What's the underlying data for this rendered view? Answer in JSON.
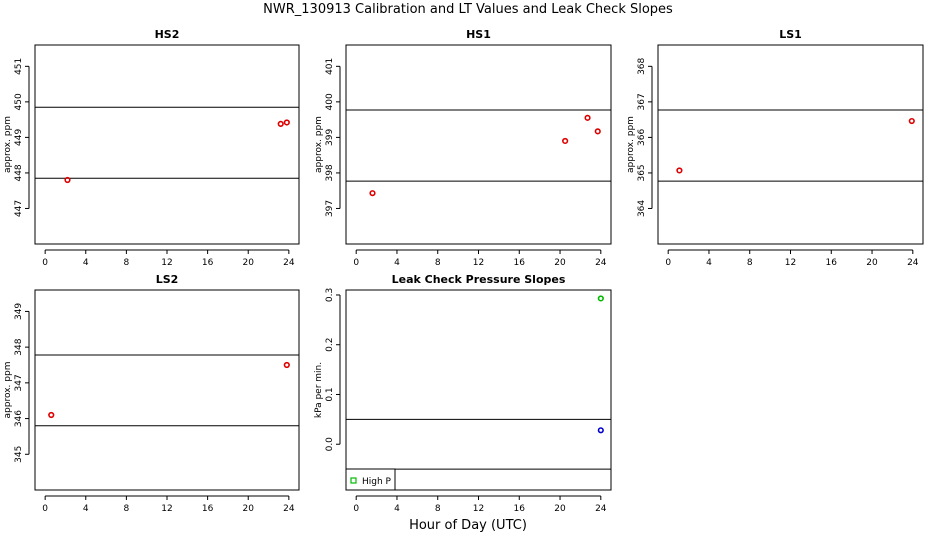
{
  "figure": {
    "title": "NWR_130913  Calibration and LT Values and Leak Check Slopes",
    "xlabel": "Hour of Day (UTC)"
  },
  "chart_data": [
    {
      "type": "scatter",
      "title": "HS2",
      "ylabel": "approx. ppm",
      "xlim": [
        -1,
        25
      ],
      "ylim": [
        446,
        451.6
      ],
      "xticks": [
        0,
        4,
        8,
        12,
        16,
        20,
        24
      ],
      "yticks": [
        447,
        448,
        449,
        450,
        451
      ],
      "hlines": [
        447.85,
        449.85
      ],
      "series": [
        {
          "color": "#dd0000",
          "points": [
            [
              2.2,
              447.8
            ],
            [
              23.2,
              449.38
            ],
            [
              23.8,
              449.42
            ]
          ]
        }
      ]
    },
    {
      "type": "scatter",
      "title": "HS1",
      "ylabel": "approx. ppm",
      "xlim": [
        -1,
        25
      ],
      "ylim": [
        396,
        401.6
      ],
      "xticks": [
        0,
        4,
        8,
        12,
        16,
        20,
        24
      ],
      "yticks": [
        397,
        398,
        399,
        400,
        401
      ],
      "hlines": [
        397.77,
        399.77
      ],
      "series": [
        {
          "color": "#dd0000",
          "points": [
            [
              1.6,
              397.43
            ],
            [
              20.5,
              398.9
            ],
            [
              22.7,
              399.55
            ],
            [
              23.7,
              399.17
            ]
          ]
        }
      ]
    },
    {
      "type": "scatter",
      "title": "LS1",
      "ylabel": "approx. ppm",
      "xlim": [
        -1,
        25
      ],
      "ylim": [
        363,
        368.6
      ],
      "xticks": [
        0,
        4,
        8,
        12,
        16,
        20,
        24
      ],
      "yticks": [
        364,
        365,
        366,
        367,
        368
      ],
      "hlines": [
        364.77,
        366.77
      ],
      "series": [
        {
          "color": "#dd0000",
          "points": [
            [
              1.1,
              365.07
            ],
            [
              23.9,
              366.46
            ]
          ]
        }
      ]
    },
    {
      "type": "scatter",
      "title": "LS2",
      "ylabel": "approx. ppm",
      "xlim": [
        -1,
        25
      ],
      "ylim": [
        344,
        349.6
      ],
      "xticks": [
        0,
        4,
        8,
        12,
        16,
        20,
        24
      ],
      "yticks": [
        345,
        346,
        347,
        348,
        349
      ],
      "hlines": [
        345.8,
        347.78
      ],
      "series": [
        {
          "color": "#dd0000",
          "points": [
            [
              0.6,
              346.1
            ],
            [
              23.8,
              347.5
            ]
          ]
        }
      ]
    },
    {
      "type": "scatter",
      "title": "Leak Check Pressure Slopes",
      "ylabel": "kPa per min.",
      "xlim": [
        -1,
        25
      ],
      "ylim": [
        -0.092,
        0.31
      ],
      "xticks": [
        0,
        4,
        8,
        12,
        16,
        20,
        24
      ],
      "yticks": [
        0.0,
        0.1,
        0.2,
        0.3
      ],
      "ytick_labels": [
        "0.0",
        "0.1",
        "0.2",
        "0.3"
      ],
      "hlines": [
        0.05,
        -0.05
      ],
      "series": [
        {
          "name": "High P",
          "color": "#00bb00",
          "points": [
            [
              24.0,
              0.293
            ]
          ]
        },
        {
          "color": "#0000cc",
          "points": [
            [
              24.0,
              0.028
            ]
          ]
        }
      ],
      "legend": {
        "location": "bottom-left",
        "entries": [
          "High P"
        ]
      }
    }
  ]
}
